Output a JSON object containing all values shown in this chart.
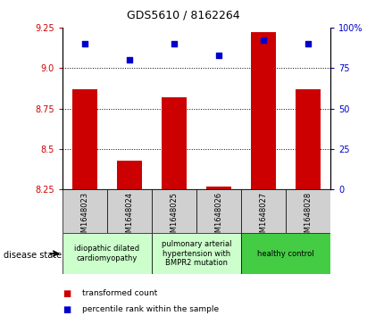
{
  "title": "GDS5610 / 8162264",
  "samples": [
    "GSM1648023",
    "GSM1648024",
    "GSM1648025",
    "GSM1648026",
    "GSM1648027",
    "GSM1648028"
  ],
  "transformed_count": [
    8.87,
    8.43,
    8.82,
    8.27,
    9.22,
    8.87
  ],
  "percentile_rank": [
    90,
    80,
    90,
    83,
    92,
    90
  ],
  "ylim_left": [
    8.25,
    9.25
  ],
  "ylim_right": [
    0,
    100
  ],
  "yticks_left": [
    8.25,
    8.5,
    8.75,
    9.0,
    9.25
  ],
  "yticks_right": [
    0,
    25,
    50,
    75,
    100
  ],
  "ytick_labels_right": [
    "0",
    "25",
    "50",
    "75",
    "100%"
  ],
  "bar_color": "#cc0000",
  "scatter_color": "#0000cc",
  "left_axis_color": "#cc0000",
  "right_axis_color": "#0000cc",
  "dotted_lines": [
    9.0,
    8.75,
    8.5
  ],
  "disease_groups": [
    {
      "label": "idiopathic dilated\ncardiomyopathy",
      "color": "#ccffcc"
    },
    {
      "label": "pulmonary arterial\nhypertension with\nBMPR2 mutation",
      "color": "#ccffcc"
    },
    {
      "label": "healthy control",
      "color": "#44cc44"
    }
  ],
  "legend_bar_label": "transformed count",
  "legend_scatter_label": "percentile rank within the sample",
  "disease_state_label": "disease state",
  "fig_width": 4.11,
  "fig_height": 3.63
}
